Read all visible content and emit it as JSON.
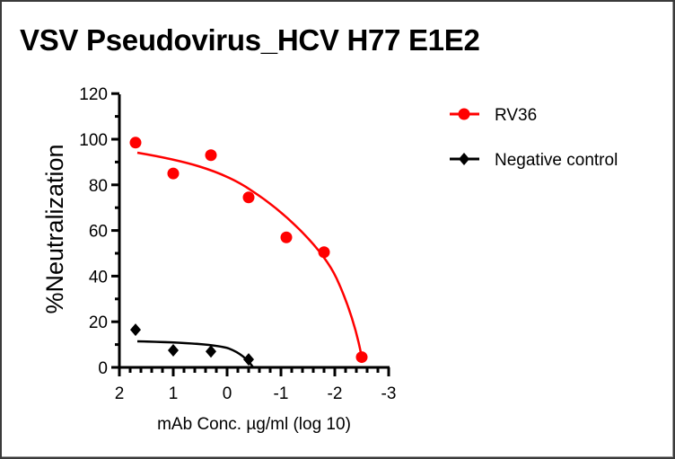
{
  "chart_data": {
    "type": "scatter",
    "title": "VSV Pseudovirus_HCV H77 E1E2",
    "xlabel": "mAb Conc. µg/ml (log 10)",
    "ylabel": "%Neutralization",
    "xlim": [
      2,
      -3
    ],
    "ylim": [
      0,
      120
    ],
    "x_ticks": [
      "2",
      "1",
      "0",
      "-1",
      "-2",
      "-3"
    ],
    "y_ticks": [
      "0",
      "20",
      "40",
      "60",
      "80",
      "100",
      "120"
    ],
    "grid": false,
    "legend_position": "right",
    "series": [
      {
        "name": "RV36",
        "color": "#ff0000",
        "marker": "circle",
        "x": [
          1.7,
          1.0,
          0.3,
          -0.4,
          -1.1,
          -1.8,
          -2.5
        ],
        "y": [
          98.5,
          85,
          93,
          74.5,
          57,
          50.5,
          4.5
        ],
        "fit_curve": true
      },
      {
        "name": "Negative control",
        "color": "#000000",
        "marker": "diamond",
        "x": [
          1.7,
          1.0,
          0.3,
          -0.4
        ],
        "y": [
          16.5,
          7.5,
          7,
          3.5
        ],
        "fit_curve": true
      }
    ]
  },
  "labels": {
    "title": "VSV Pseudovirus_HCV H77 E1E2",
    "xlabel": "mAb Conc. µg/ml (log 10)",
    "ylabel": "%Neutralization",
    "x_ticks": [
      "2",
      "1",
      "0",
      "-1",
      "-2",
      "-3"
    ],
    "y_ticks": [
      "0",
      "20",
      "40",
      "60",
      "80",
      "100",
      "120"
    ],
    "legend": [
      "RV36",
      "Negative control"
    ]
  }
}
